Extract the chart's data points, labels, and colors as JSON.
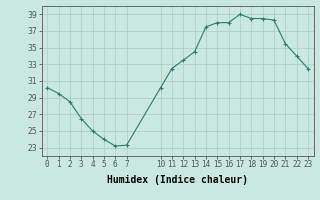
{
  "x": [
    0,
    1,
    2,
    3,
    4,
    5,
    6,
    7,
    10,
    11,
    12,
    13,
    14,
    15,
    16,
    17,
    18,
    19,
    20,
    21,
    22,
    23
  ],
  "y": [
    30.2,
    29.5,
    28.5,
    26.5,
    25.0,
    24.0,
    23.2,
    23.3,
    30.2,
    32.5,
    33.5,
    34.5,
    37.5,
    38.0,
    38.0,
    39.0,
    38.5,
    38.5,
    38.3,
    35.5,
    34.0,
    32.5
  ],
  "ylim": [
    22,
    40
  ],
  "xlim": [
    -0.5,
    23.5
  ],
  "yticks": [
    23,
    25,
    27,
    29,
    31,
    33,
    35,
    37,
    39
  ],
  "xlabel": "Humidex (Indice chaleur)",
  "line_color": "#2e7d6e",
  "marker": "+",
  "bg_color": "#c8e8e0",
  "grid_color": "#b0d0c8",
  "axis_color": "#555555",
  "tick_fontsize": 5.5,
  "xlabel_fontsize": 7.0,
  "xticks_first": [
    0,
    1,
    2,
    3,
    4,
    5,
    6,
    7
  ],
  "xticks_second": [
    10,
    11,
    12,
    13,
    14,
    15,
    16,
    17,
    18,
    19,
    20,
    21,
    22,
    23
  ]
}
